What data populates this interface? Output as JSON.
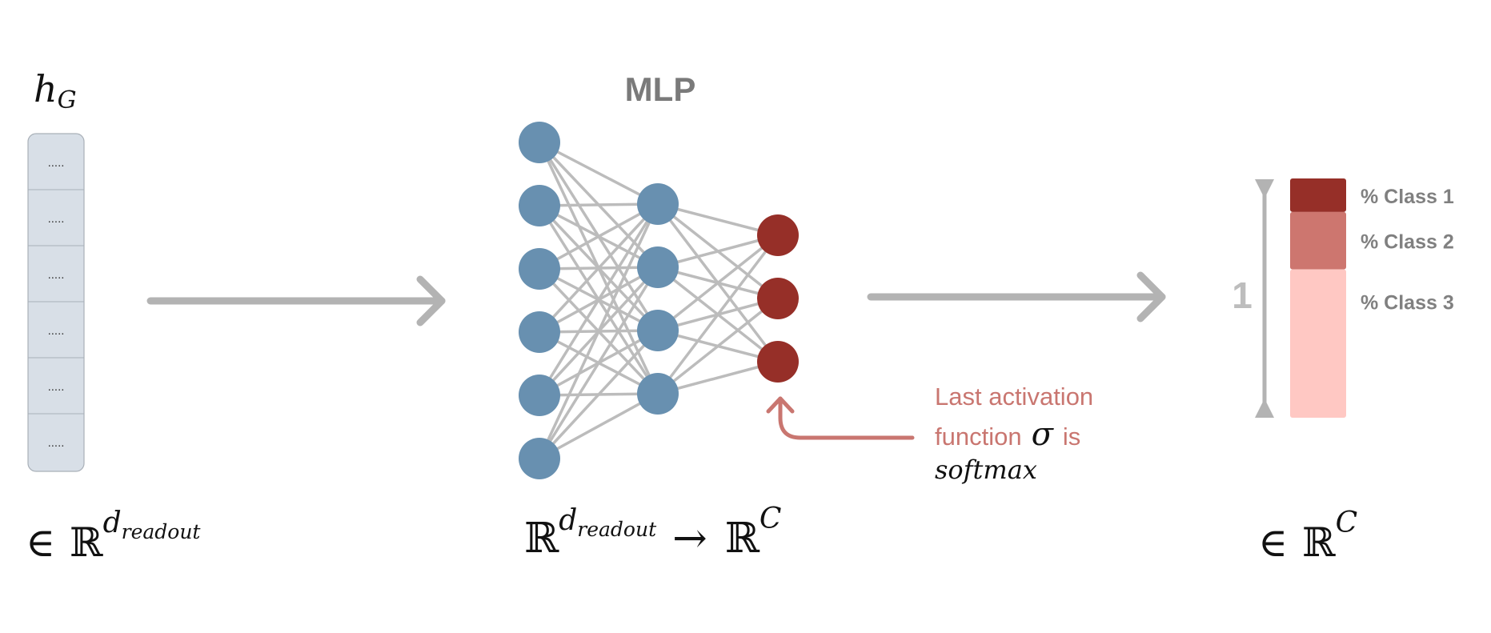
{
  "input": {
    "label_main": "h",
    "label_sub": "G",
    "cells": [
      ".....",
      ".....",
      ".....",
      ".....",
      ".....",
      "....."
    ],
    "domain": {
      "elem": "∈",
      "set": "ℝ",
      "sup_main": "d",
      "sup_sub": "readout"
    }
  },
  "mlp": {
    "title": "MLP",
    "layers": [
      6,
      4,
      3
    ],
    "mapping": {
      "set_in": "ℝ",
      "sup_main": "d",
      "sup_sub": "readout",
      "arrow": "→",
      "set_out": "ℝ",
      "sup_out": "C"
    }
  },
  "annotation": {
    "line1": "Last activation",
    "line2_a": "function",
    "sigma": "σ",
    "line2_b": "is",
    "line3": "softmax"
  },
  "output": {
    "total_label": "1",
    "classes": [
      {
        "label": "% Class 1",
        "fraction": 0.14,
        "color": "#962f28"
      },
      {
        "label": "% Class 2",
        "fraction": 0.24,
        "color": "#cd766f"
      },
      {
        "label": "% Class 3",
        "fraction": 0.62,
        "color": "#ffc8c3"
      }
    ],
    "domain": {
      "elem": "∈",
      "set": "ℝ",
      "sup": "C"
    }
  },
  "colors": {
    "hidden_node": "#6890b0",
    "output_node": "#962f28",
    "edge": "#bcbcbc",
    "arrow": "#b3b3b3",
    "annotation": "#c97670",
    "label_gray": "#808080",
    "cell_fill": "#d8dfe7",
    "cell_border": "#a9b0b8"
  }
}
